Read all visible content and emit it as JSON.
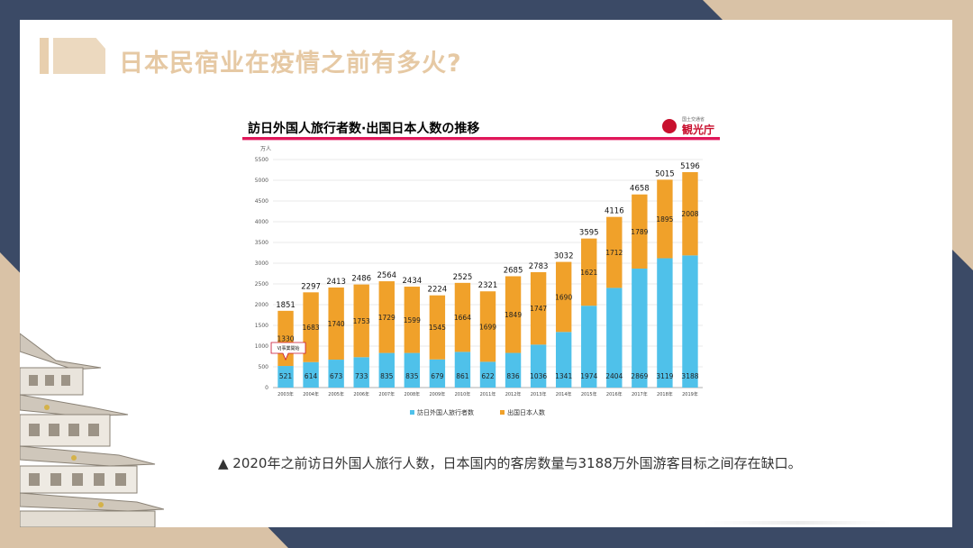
{
  "slide": {
    "title": "日本民宿业在疫情之前有多火?",
    "caption": "▲ 2020年之前访日外国人旅行人数，日本国内的客房数量与3188万外国游客目标之间存在缺口。"
  },
  "chart_header": {
    "title": "訪日外国人旅行者数·出国日本人数の推移",
    "logo_small": "国土交通省",
    "logo_text": "観光庁",
    "callout": "VJ事業開始"
  },
  "colors": {
    "blue": "#4fc1ea",
    "orange": "#f0a12a",
    "accent_line": "#e0185a"
  },
  "chart_data": {
    "type": "bar",
    "stacked": true,
    "unit": "万人",
    "categories": [
      "2003年",
      "2004年",
      "2005年",
      "2006年",
      "2007年",
      "2008年",
      "2009年",
      "2010年",
      "2011年",
      "2012年",
      "2013年",
      "2014年",
      "2015年",
      "2016年",
      "2017年",
      "2018年",
      "2019年"
    ],
    "series": [
      {
        "name": "訪日外国人旅行者数",
        "values": [
          521,
          614,
          673,
          733,
          835,
          835,
          679,
          861,
          622,
          836,
          1036,
          1341,
          1974,
          2404,
          2869,
          3119,
          3188
        ]
      },
      {
        "name": "出国日本人数",
        "values": [
          1330,
          1683,
          1740,
          1753,
          1729,
          1599,
          1545,
          1664,
          1699,
          1849,
          1747,
          1690,
          1621,
          1712,
          1789,
          1895,
          2008
        ]
      }
    ],
    "totals": [
      1851,
      2297,
      2413,
      2486,
      2564,
      2434,
      2224,
      2525,
      2321,
      2685,
      2783,
      3032,
      3595,
      4116,
      4658,
      5015,
      5196
    ],
    "ylim": [
      0,
      5500
    ],
    "yticks": [
      0,
      500,
      1000,
      1500,
      2000,
      2500,
      3000,
      3500,
      4000,
      4500,
      5000,
      5500
    ],
    "grid": true,
    "legend": "bottom"
  }
}
